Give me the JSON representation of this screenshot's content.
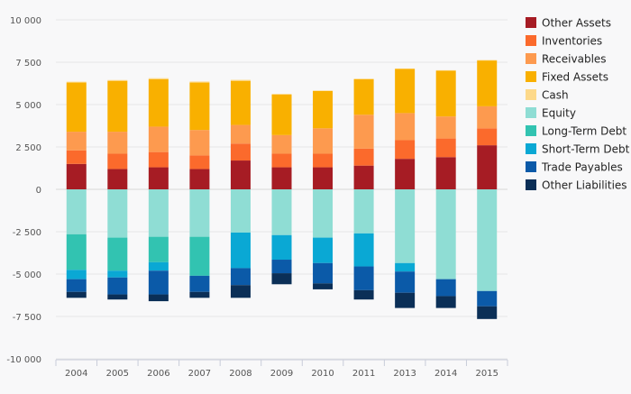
{
  "chart_data": {
    "type": "bar",
    "stacked": true,
    "title": "",
    "xlabel": "",
    "ylabel": "",
    "ylim": [
      -10000,
      10000
    ],
    "grid": true,
    "legend_position": "right",
    "y_ticks": [
      10000,
      7500,
      5000,
      2500,
      0,
      -2500,
      -5000,
      -7500,
      -10000
    ],
    "y_tick_labels": [
      "10 000",
      "7 500",
      "5 000",
      "2 500",
      "0",
      "-2 500",
      "-5 000",
      "-7 500",
      "-10 000"
    ],
    "categories": [
      "2004",
      "2005",
      "2006",
      "2007",
      "2008",
      "2009",
      "2010",
      "2011",
      "2013",
      "2014",
      "2015"
    ],
    "series": [
      {
        "name": "Other Assets",
        "color": "#a61c24",
        "values": [
          1500,
          1200,
          1300,
          1200,
          1700,
          1300,
          1300,
          1400,
          1800,
          1900,
          2600
        ]
      },
      {
        "name": "Inventories",
        "color": "#fb6a2c",
        "values": [
          800,
          900,
          900,
          800,
          1000,
          800,
          800,
          1000,
          1100,
          1100,
          1000
        ]
      },
      {
        "name": "Receivables",
        "color": "#fd9a4f",
        "values": [
          1100,
          1300,
          1500,
          1500,
          1100,
          1100,
          1500,
          2000,
          1600,
          1300,
          1300
        ]
      },
      {
        "name": "Fixed Assets",
        "color": "#f9b000",
        "values": [
          2900,
          3000,
          2800,
          2800,
          2600,
          2400,
          2200,
          2100,
          2600,
          2700,
          2700
        ]
      },
      {
        "name": "Cash",
        "color": "#fdd98a",
        "values": [
          50,
          50,
          60,
          60,
          60,
          30,
          30,
          30,
          30,
          30,
          30
        ]
      },
      {
        "name": "Equity",
        "color": "#8fddd4",
        "values": [
          -2650,
          -2850,
          -2800,
          -2800,
          -2550,
          -2700,
          -2850,
          -2600,
          -4350,
          -5300,
          -6000
        ]
      },
      {
        "name": "Long-Term Debt",
        "color": "#32c3b1",
        "values": [
          -2100,
          -1950,
          -1500,
          -2300,
          0,
          0,
          0,
          0,
          0,
          0,
          0
        ]
      },
      {
        "name": "Short-Term Debt",
        "color": "#0aa8d4",
        "values": [
          -550,
          -400,
          -500,
          0,
          -2100,
          -1450,
          -1500,
          -1950,
          -500,
          0,
          0
        ]
      },
      {
        "name": "Trade Payables",
        "color": "#0b5aa8",
        "values": [
          -750,
          -1000,
          -1400,
          -950,
          -1000,
          -800,
          -1200,
          -1400,
          -1250,
          -1000,
          -900
        ]
      },
      {
        "name": "Other Liabilities",
        "color": "#0b2f57",
        "values": [
          -350,
          -300,
          -400,
          -350,
          -750,
          -650,
          -350,
          -550,
          -900,
          -700,
          -750
        ]
      }
    ]
  }
}
